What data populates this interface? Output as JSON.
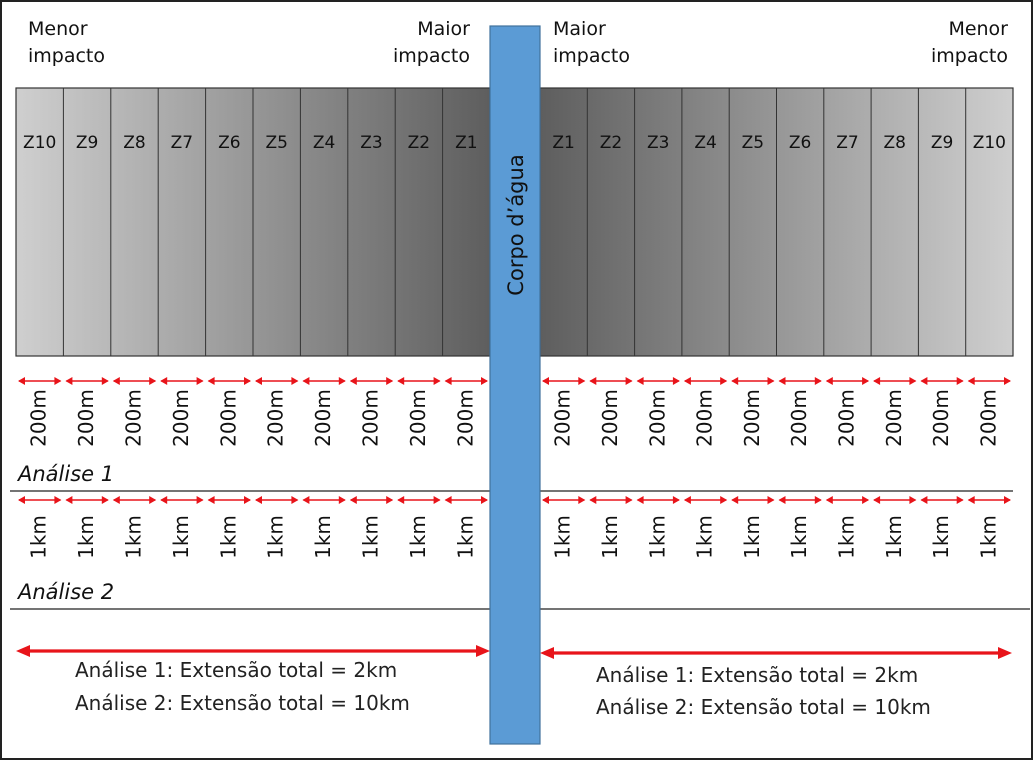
{
  "impact_labels": {
    "left_outer": {
      "line1": "Menor",
      "line2": "impacto"
    },
    "left_inner": {
      "line1": "Maior",
      "line2": "impacto"
    },
    "right_inner": {
      "line1": "Maior",
      "line2": "impacto"
    },
    "right_outer": {
      "line1": "Menor",
      "line2": "impacto"
    }
  },
  "zones": {
    "left": [
      "Z10",
      "Z9",
      "Z8",
      "Z7",
      "Z6",
      "Z5",
      "Z4",
      "Z3",
      "Z2",
      "Z1"
    ],
    "right": [
      "Z1",
      "Z2",
      "Z3",
      "Z4",
      "Z5",
      "Z6",
      "Z7",
      "Z8",
      "Z9",
      "Z10"
    ]
  },
  "water_body": {
    "label": "Corpo d’água",
    "color": "#5b9bd5"
  },
  "analysis_1": {
    "label": "Análise 1",
    "segment_label": "200m"
  },
  "analysis_2": {
    "label": "Análise 2",
    "segment_label": "1km"
  },
  "totals": {
    "line1": "Análise 1: Extensão total = 2km",
    "line2": "Análise 2: Extensão total = 10km"
  },
  "colors": {
    "arrow": "#e8141a",
    "zone_near": "#5e5e5e",
    "zone_far": "#cfcfcf"
  }
}
